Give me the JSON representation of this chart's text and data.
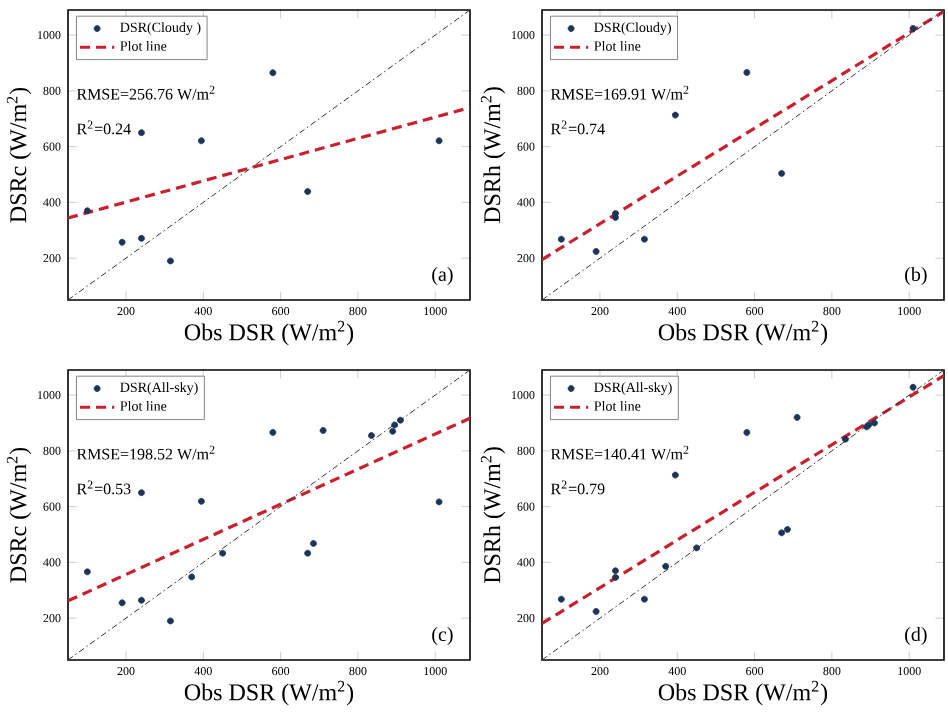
{
  "chart_data": [
    {
      "type": "scatter",
      "xlabel": "Obs DSR (W/m$^{2}$)",
      "ylabel": "DSRc (W/m$^{2}$)",
      "xlim": [
        50,
        1090
      ],
      "ylim": [
        50,
        1090
      ],
      "xticks": [
        200,
        400,
        600,
        800,
        1000
      ],
      "yticks": [
        200,
        400,
        600,
        800,
        1000
      ],
      "legend": "top left",
      "annotations": [
        "RMSE=256.76 W/m$^{2}$",
        "R$^{2}$=0.24",
        "(a)"
      ],
      "series": [
        {
          "name": "DSR(Cloudy )",
          "marker": "circle",
          "color": "#1c3557",
          "x": [
            100,
            190,
            240,
            240,
            315,
            395,
            580,
            670,
            1010
          ],
          "values": [
            370,
            257,
            650,
            271,
            190,
            621,
            865,
            439,
            621
          ]
        },
        {
          "name": "Plot line",
          "type": "line",
          "line_style": "dashed",
          "color": "#c8202e",
          "x": [
            50,
            1090
          ],
          "values": [
            344,
            740
          ]
        },
        {
          "type": "line",
          "line_style": "dotted",
          "color": "#333333",
          "x": [
            50,
            1090
          ],
          "values": [
            50,
            1090
          ]
        }
      ]
    },
    {
      "type": "scatter",
      "xlabel": "Obs DSR (W/m$^{2}$)",
      "ylabel": "DSRh (W/m$^{2}$)",
      "xlim": [
        50,
        1090
      ],
      "ylim": [
        50,
        1090
      ],
      "xticks": [
        200,
        400,
        600,
        800,
        1000
      ],
      "yticks": [
        200,
        400,
        600,
        800,
        1000
      ],
      "legend": "top left",
      "annotations": [
        "RMSE=169.91 W/m$^{2}$",
        "R$^{2}$=0.74",
        "(b)"
      ],
      "series": [
        {
          "name": "DSR(Cloudy)",
          "marker": "circle",
          "color": "#1c3557",
          "x": [
            100,
            190,
            240,
            240,
            315,
            395,
            580,
            670,
            1010
          ],
          "values": [
            268,
            224,
            360,
            346,
            268,
            713,
            866,
            504,
            1024
          ]
        },
        {
          "name": "Plot line",
          "type": "line",
          "line_style": "dashed",
          "color": "#c8202e",
          "x": [
            50,
            1090
          ],
          "values": [
            195,
            1085
          ]
        },
        {
          "type": "line",
          "line_style": "dotted",
          "color": "#333333",
          "x": [
            50,
            1090
          ],
          "values": [
            50,
            1090
          ]
        }
      ]
    },
    {
      "type": "scatter",
      "xlabel": "Obs DSR (W/m$^{2}$)",
      "ylabel": "DSRc (W/m$^{2}$)",
      "xlim": [
        50,
        1090
      ],
      "ylim": [
        50,
        1090
      ],
      "xticks": [
        200,
        400,
        600,
        800,
        1000
      ],
      "yticks": [
        200,
        400,
        600,
        800,
        1000
      ],
      "legend": "top left",
      "annotations": [
        "RMSE=198.52 W/m$^{2}$",
        "R$^{2}$=0.53",
        "(c)"
      ],
      "series": [
        {
          "name": "DSR(All-sky)",
          "marker": "circle",
          "color": "#1c3557",
          "x": [
            100,
            190,
            240,
            240,
            315,
            370,
            395,
            450,
            580,
            670,
            685,
            710,
            835,
            890,
            895,
            910,
            1010
          ],
          "values": [
            366,
            255,
            650,
            264,
            190,
            348,
            619,
            433,
            866,
            433,
            468,
            873,
            855,
            870,
            893,
            910,
            617
          ]
        },
        {
          "name": "Plot line",
          "type": "line",
          "line_style": "dashed",
          "color": "#c8202e",
          "x": [
            50,
            1090
          ],
          "values": [
            262,
            917
          ]
        },
        {
          "type": "line",
          "line_style": "dotted",
          "color": "#333333",
          "x": [
            50,
            1090
          ],
          "values": [
            50,
            1090
          ]
        }
      ]
    },
    {
      "type": "scatter",
      "xlabel": "Obs DSR (W/m$^{2}$)",
      "ylabel": "DSRh (W/m$^{2}$)",
      "xlim": [
        50,
        1090
      ],
      "ylim": [
        50,
        1090
      ],
      "xticks": [
        200,
        400,
        600,
        800,
        1000
      ],
      "yticks": [
        200,
        400,
        600,
        800,
        1000
      ],
      "legend": "top left",
      "annotations": [
        "RMSE=140.41 W/m$^{2}$",
        "R$^{2}$=0.79",
        "(d)"
      ],
      "series": [
        {
          "name": "DSR(All-sky)",
          "marker": "circle",
          "color": "#1c3557",
          "x": [
            100,
            190,
            240,
            240,
            315,
            370,
            395,
            450,
            580,
            670,
            685,
            710,
            835,
            890,
            895,
            910,
            1010
          ],
          "values": [
            268,
            224,
            370,
            346,
            268,
            386,
            713,
            452,
            866,
            506,
            518,
            920,
            842,
            886,
            893,
            900,
            1028
          ]
        },
        {
          "name": "Plot line",
          "type": "line",
          "line_style": "dashed",
          "color": "#c8202e",
          "x": [
            50,
            1090
          ],
          "values": [
            181,
            1070
          ]
        },
        {
          "type": "line",
          "line_style": "dotted",
          "color": "#333333",
          "x": [
            50,
            1090
          ],
          "values": [
            50,
            1090
          ]
        }
      ]
    }
  ]
}
